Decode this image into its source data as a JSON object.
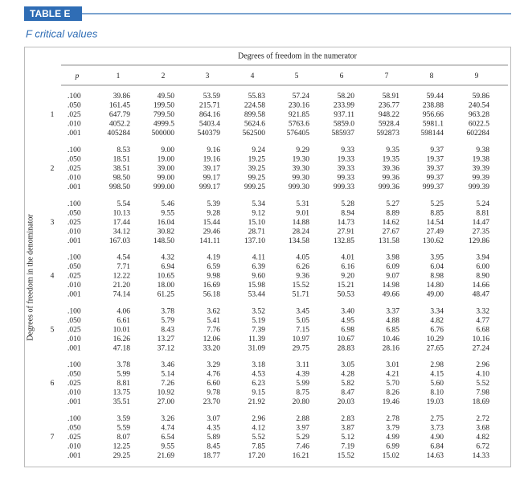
{
  "header": {
    "label": "TABLE E",
    "title": "F critical values"
  },
  "table": {
    "column_title": "Degrees of freedom in the numerator",
    "row_title": "Degrees of freedom in the denominator",
    "columns": [
      "p",
      "1",
      "2",
      "3",
      "4",
      "5",
      "6",
      "7",
      "8",
      "9"
    ],
    "groups": [
      {
        "df": "1",
        "rows": [
          [
            ".100",
            "39.86",
            "49.50",
            "53.59",
            "55.83",
            "57.24",
            "58.20",
            "58.91",
            "59.44",
            "59.86"
          ],
          [
            ".050",
            "161.45",
            "199.50",
            "215.71",
            "224.58",
            "230.16",
            "233.99",
            "236.77",
            "238.88",
            "240.54"
          ],
          [
            ".025",
            "647.79",
            "799.50",
            "864.16",
            "899.58",
            "921.85",
            "937.11",
            "948.22",
            "956.66",
            "963.28"
          ],
          [
            ".010",
            "4052.2",
            "4999.5",
            "5403.4",
            "5624.6",
            "5763.6",
            "5859.0",
            "5928.4",
            "5981.1",
            "6022.5"
          ],
          [
            ".001",
            "405284",
            "500000",
            "540379",
            "562500",
            "576405",
            "585937",
            "592873",
            "598144",
            "602284"
          ]
        ]
      },
      {
        "df": "2",
        "rows": [
          [
            ".100",
            "8.53",
            "9.00",
            "9.16",
            "9.24",
            "9.29",
            "9.33",
            "9.35",
            "9.37",
            "9.38"
          ],
          [
            ".050",
            "18.51",
            "19.00",
            "19.16",
            "19.25",
            "19.30",
            "19.33",
            "19.35",
            "19.37",
            "19.38"
          ],
          [
            ".025",
            "38.51",
            "39.00",
            "39.17",
            "39.25",
            "39.30",
            "39.33",
            "39.36",
            "39.37",
            "39.39"
          ],
          [
            ".010",
            "98.50",
            "99.00",
            "99.17",
            "99.25",
            "99.30",
            "99.33",
            "99.36",
            "99.37",
            "99.39"
          ],
          [
            ".001",
            "998.50",
            "999.00",
            "999.17",
            "999.25",
            "999.30",
            "999.33",
            "999.36",
            "999.37",
            "999.39"
          ]
        ]
      },
      {
        "df": "3",
        "rows": [
          [
            ".100",
            "5.54",
            "5.46",
            "5.39",
            "5.34",
            "5.31",
            "5.28",
            "5.27",
            "5.25",
            "5.24"
          ],
          [
            ".050",
            "10.13",
            "9.55",
            "9.28",
            "9.12",
            "9.01",
            "8.94",
            "8.89",
            "8.85",
            "8.81"
          ],
          [
            ".025",
            "17.44",
            "16.04",
            "15.44",
            "15.10",
            "14.88",
            "14.73",
            "14.62",
            "14.54",
            "14.47"
          ],
          [
            ".010",
            "34.12",
            "30.82",
            "29.46",
            "28.71",
            "28.24",
            "27.91",
            "27.67",
            "27.49",
            "27.35"
          ],
          [
            ".001",
            "167.03",
            "148.50",
            "141.11",
            "137.10",
            "134.58",
            "132.85",
            "131.58",
            "130.62",
            "129.86"
          ]
        ]
      },
      {
        "df": "4",
        "rows": [
          [
            ".100",
            "4.54",
            "4.32",
            "4.19",
            "4.11",
            "4.05",
            "4.01",
            "3.98",
            "3.95",
            "3.94"
          ],
          [
            ".050",
            "7.71",
            "6.94",
            "6.59",
            "6.39",
            "6.26",
            "6.16",
            "6.09",
            "6.04",
            "6.00"
          ],
          [
            ".025",
            "12.22",
            "10.65",
            "9.98",
            "9.60",
            "9.36",
            "9.20",
            "9.07",
            "8.98",
            "8.90"
          ],
          [
            ".010",
            "21.20",
            "18.00",
            "16.69",
            "15.98",
            "15.52",
            "15.21",
            "14.98",
            "14.80",
            "14.66"
          ],
          [
            ".001",
            "74.14",
            "61.25",
            "56.18",
            "53.44",
            "51.71",
            "50.53",
            "49.66",
            "49.00",
            "48.47"
          ]
        ]
      },
      {
        "df": "5",
        "rows": [
          [
            ".100",
            "4.06",
            "3.78",
            "3.62",
            "3.52",
            "3.45",
            "3.40",
            "3.37",
            "3.34",
            "3.32"
          ],
          [
            ".050",
            "6.61",
            "5.79",
            "5.41",
            "5.19",
            "5.05",
            "4.95",
            "4.88",
            "4.82",
            "4.77"
          ],
          [
            ".025",
            "10.01",
            "8.43",
            "7.76",
            "7.39",
            "7.15",
            "6.98",
            "6.85",
            "6.76",
            "6.68"
          ],
          [
            ".010",
            "16.26",
            "13.27",
            "12.06",
            "11.39",
            "10.97",
            "10.67",
            "10.46",
            "10.29",
            "10.16"
          ],
          [
            ".001",
            "47.18",
            "37.12",
            "33.20",
            "31.09",
            "29.75",
            "28.83",
            "28.16",
            "27.65",
            "27.24"
          ]
        ]
      },
      {
        "df": "6",
        "rows": [
          [
            ".100",
            "3.78",
            "3.46",
            "3.29",
            "3.18",
            "3.11",
            "3.05",
            "3.01",
            "2.98",
            "2.96"
          ],
          [
            ".050",
            "5.99",
            "5.14",
            "4.76",
            "4.53",
            "4.39",
            "4.28",
            "4.21",
            "4.15",
            "4.10"
          ],
          [
            ".025",
            "8.81",
            "7.26",
            "6.60",
            "6.23",
            "5.99",
            "5.82",
            "5.70",
            "5.60",
            "5.52"
          ],
          [
            ".010",
            "13.75",
            "10.92",
            "9.78",
            "9.15",
            "8.75",
            "8.47",
            "8.26",
            "8.10",
            "7.98"
          ],
          [
            ".001",
            "35.51",
            "27.00",
            "23.70",
            "21.92",
            "20.80",
            "20.03",
            "19.46",
            "19.03",
            "18.69"
          ]
        ]
      },
      {
        "df": "7",
        "rows": [
          [
            ".100",
            "3.59",
            "3.26",
            "3.07",
            "2.96",
            "2.88",
            "2.83",
            "2.78",
            "2.75",
            "2.72"
          ],
          [
            ".050",
            "5.59",
            "4.74",
            "4.35",
            "4.12",
            "3.97",
            "3.87",
            "3.79",
            "3.73",
            "3.68"
          ],
          [
            ".025",
            "8.07",
            "6.54",
            "5.89",
            "5.52",
            "5.29",
            "5.12",
            "4.99",
            "4.90",
            "4.82"
          ],
          [
            ".010",
            "12.25",
            "9.55",
            "8.45",
            "7.85",
            "7.46",
            "7.19",
            "6.99",
            "6.84",
            "6.72"
          ],
          [
            ".001",
            "29.25",
            "21.69",
            "18.77",
            "17.20",
            "16.21",
            "15.52",
            "15.02",
            "14.63",
            "14.33"
          ]
        ]
      }
    ]
  }
}
